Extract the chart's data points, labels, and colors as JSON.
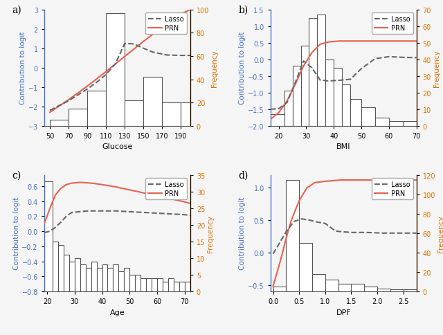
{
  "panels": [
    "a",
    "b",
    "c",
    "d"
  ],
  "panel_a": {
    "xlabel": "Glucose",
    "ylabel_left": "Contribution to logit",
    "ylabel_right": "Frequency",
    "xlim": [
      44,
      200
    ],
    "ylim_left": [
      -3,
      3
    ],
    "ylim_right": [
      0,
      100
    ],
    "xticks": [
      50,
      70,
      90,
      110,
      130,
      150,
      170,
      190
    ],
    "yticks_left": [
      -3,
      -2,
      -1,
      0,
      1,
      2,
      3
    ],
    "yticks_right": [
      0,
      20,
      40,
      60,
      80,
      100
    ],
    "hist_edges": [
      50,
      70,
      90,
      110,
      130,
      150,
      170,
      190,
      200
    ],
    "hist_heights": [
      5,
      15,
      30,
      97,
      22,
      42,
      20,
      20
    ],
    "lasso_x": [
      50,
      70,
      90,
      100,
      110,
      120,
      130,
      140,
      150,
      160,
      175,
      190,
      200
    ],
    "lasso_y": [
      -2.2,
      -1.7,
      -1.1,
      -0.75,
      -0.35,
      0.2,
      1.25,
      1.22,
      1.0,
      0.8,
      0.65,
      0.63,
      0.63
    ],
    "prn_x": [
      50,
      70,
      90,
      110,
      130,
      150,
      170,
      190,
      200
    ],
    "prn_y": [
      -2.3,
      -1.65,
      -0.95,
      -0.2,
      0.58,
      1.35,
      2.08,
      2.75,
      3.0
    ]
  },
  "panel_b": {
    "xlabel": "BMI",
    "ylabel_left": "Contribution to logit",
    "ylabel_right": "Frequency",
    "xlim": [
      17,
      70
    ],
    "ylim_left": [
      -2,
      1.5
    ],
    "ylim_right": [
      0,
      70
    ],
    "xticks": [
      20,
      30,
      40,
      50,
      60,
      70
    ],
    "yticks_left": [
      -2,
      -1.5,
      -1,
      -0.5,
      0,
      0.5,
      1,
      1.5
    ],
    "yticks_right": [
      0,
      10,
      20,
      30,
      40,
      50,
      60,
      70
    ],
    "hist_edges": [
      17,
      22,
      25,
      28,
      31,
      34,
      37,
      40,
      43,
      46,
      50,
      55,
      60,
      65,
      70
    ],
    "hist_heights": [
      7,
      21,
      36,
      48,
      65,
      67,
      40,
      35,
      25,
      16,
      11,
      5,
      3,
      3
    ],
    "lasso_x": [
      17,
      20,
      23,
      26,
      29,
      32,
      35,
      38,
      42,
      46,
      50,
      55,
      60,
      65,
      70
    ],
    "lasso_y": [
      -1.5,
      -1.48,
      -1.3,
      -0.7,
      -0.05,
      -0.25,
      -0.62,
      -0.65,
      -0.63,
      -0.6,
      -0.28,
      0.02,
      0.08,
      0.06,
      0.05
    ],
    "prn_x": [
      17,
      20,
      23,
      26,
      29,
      32,
      35,
      38,
      42,
      46,
      50,
      55,
      60,
      65,
      70
    ],
    "prn_y": [
      -1.8,
      -1.6,
      -1.25,
      -0.75,
      -0.2,
      0.2,
      0.45,
      0.52,
      0.55,
      0.55,
      0.55,
      0.55,
      0.55,
      0.55,
      0.55
    ]
  },
  "panel_c": {
    "xlabel": "Age",
    "ylabel_left": "Contribution to logit",
    "ylabel_right": "Frequency",
    "xlim": [
      19,
      72
    ],
    "ylim_left": [
      -0.8,
      0.75
    ],
    "ylim_right": [
      0,
      35
    ],
    "xticks": [
      20,
      30,
      40,
      50,
      60,
      70
    ],
    "yticks_left": [
      -0.8,
      -0.6,
      -0.4,
      -0.2,
      0,
      0.2,
      0.4,
      0.6
    ],
    "yticks_right": [
      0,
      5,
      10,
      15,
      20,
      25,
      30,
      35
    ],
    "hist_edges": [
      19,
      22,
      24,
      26,
      28,
      30,
      32,
      34,
      36,
      38,
      40,
      42,
      44,
      46,
      48,
      50,
      52,
      54,
      56,
      58,
      60,
      62,
      64,
      66,
      68,
      70,
      72
    ],
    "hist_heights": [
      33,
      15,
      14,
      11,
      9,
      10,
      8,
      7,
      9,
      7,
      8,
      7,
      8,
      6,
      7,
      5,
      5,
      4,
      4,
      4,
      4,
      3,
      4,
      3,
      3,
      3
    ],
    "lasso_x": [
      19,
      21,
      23,
      25,
      27,
      29,
      32,
      35,
      40,
      45,
      50,
      55,
      60,
      65,
      70,
      72
    ],
    "lasso_y": [
      -0.02,
      0.0,
      0.05,
      0.12,
      0.2,
      0.25,
      0.26,
      0.27,
      0.27,
      0.27,
      0.26,
      0.25,
      0.24,
      0.23,
      0.22,
      0.21
    ],
    "prn_x": [
      19,
      21,
      23,
      25,
      27,
      29,
      32,
      36,
      40,
      45,
      50,
      55,
      60,
      65,
      70,
      72
    ],
    "prn_y": [
      0.1,
      0.3,
      0.48,
      0.57,
      0.62,
      0.64,
      0.65,
      0.64,
      0.62,
      0.59,
      0.55,
      0.51,
      0.47,
      0.43,
      0.39,
      0.37
    ]
  },
  "panel_d": {
    "xlabel": "DPF",
    "ylabel_left": "Contribution to logit",
    "ylabel_right": "Frequency",
    "xlim": [
      -0.05,
      2.75
    ],
    "ylim_left": [
      -0.6,
      1.2
    ],
    "ylim_right": [
      0,
      120
    ],
    "xticks": [
      0,
      0.5,
      1.0,
      1.5,
      2.0,
      2.5
    ],
    "yticks_left": [
      -0.5,
      0,
      0.5,
      1.0
    ],
    "yticks_right": [
      0,
      20,
      40,
      60,
      80,
      100,
      120
    ],
    "hist_edges": [
      0.0,
      0.25,
      0.5,
      0.75,
      1.0,
      1.25,
      1.5,
      1.75,
      2.0,
      2.25,
      2.5,
      2.75
    ],
    "hist_heights": [
      5,
      115,
      50,
      18,
      12,
      8,
      8,
      5,
      3,
      2,
      2
    ],
    "lasso_x": [
      0.0,
      0.25,
      0.4,
      0.55,
      0.7,
      0.85,
      1.0,
      1.2,
      1.5,
      1.8,
      2.1,
      2.4,
      2.75
    ],
    "lasso_y": [
      -0.02,
      0.32,
      0.48,
      0.52,
      0.5,
      0.47,
      0.45,
      0.33,
      0.31,
      0.31,
      0.3,
      0.3,
      0.3
    ],
    "prn_x": [
      0.0,
      0.15,
      0.25,
      0.35,
      0.5,
      0.65,
      0.8,
      1.0,
      1.3,
      1.6,
      2.0,
      2.4,
      2.75
    ],
    "prn_y": [
      -0.52,
      -0.1,
      0.22,
      0.5,
      0.8,
      1.0,
      1.08,
      1.1,
      1.12,
      1.12,
      1.12,
      1.12,
      1.12
    ]
  },
  "lasso_color": "#666666",
  "prn_color": "#e8604c",
  "hist_facecolor": "#ffffff",
  "hist_edgecolor": "#555555",
  "left_axis_color": "#4472c4",
  "right_axis_color": "#e07000",
  "background_color": "#f5f5f5"
}
